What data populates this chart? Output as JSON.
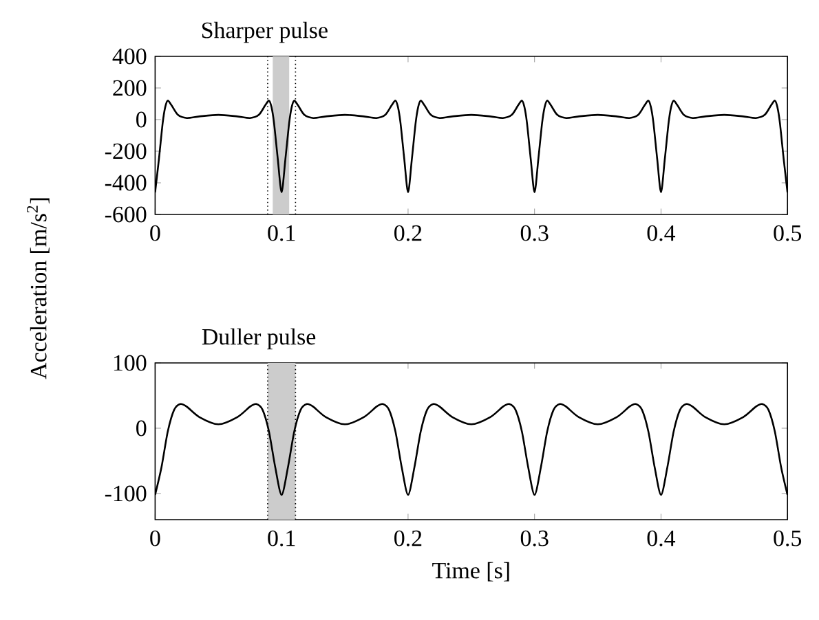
{
  "chart_data": [
    {
      "type": "line",
      "title": "Sharper pulse",
      "ylabel": "Acceleration [m/s$^{2}$]",
      "color": "#000000",
      "x": [
        0,
        0.003,
        0.006,
        0.008,
        0.01,
        0.013,
        0.018,
        0.025,
        0.035,
        0.05,
        0.065,
        0.075,
        0.082,
        0.087,
        0.09,
        0.092,
        0.094,
        0.097,
        0.1,
        0.103,
        0.106,
        0.108,
        0.11,
        0.113,
        0.118,
        0.125,
        0.135,
        0.15,
        0.165,
        0.175,
        0.182,
        0.187,
        0.19,
        0.192,
        0.194,
        0.197,
        0.2,
        0.203,
        0.206,
        0.208,
        0.21,
        0.213,
        0.218,
        0.225,
        0.235,
        0.25,
        0.265,
        0.275,
        0.282,
        0.287,
        0.29,
        0.292,
        0.294,
        0.297,
        0.3,
        0.303,
        0.306,
        0.308,
        0.31,
        0.313,
        0.318,
        0.325,
        0.335,
        0.35,
        0.365,
        0.375,
        0.382,
        0.387,
        0.39,
        0.392,
        0.394,
        0.397,
        0.4,
        0.403,
        0.406,
        0.408,
        0.41,
        0.413,
        0.418,
        0.425,
        0.435,
        0.45,
        0.465,
        0.475,
        0.482,
        0.487,
        0.49,
        0.492,
        0.494,
        0.497,
        0.5
      ],
      "values": [
        -460,
        -250,
        -20,
        80,
        120,
        90,
        30,
        10,
        20,
        30,
        20,
        10,
        30,
        90,
        120,
        80,
        -20,
        -250,
        -460,
        -250,
        -20,
        80,
        120,
        90,
        30,
        10,
        20,
        30,
        20,
        10,
        30,
        90,
        120,
        80,
        -20,
        -250,
        -460,
        -250,
        -20,
        80,
        120,
        90,
        30,
        10,
        20,
        30,
        20,
        10,
        30,
        90,
        120,
        80,
        -20,
        -250,
        -460,
        -250,
        -20,
        80,
        120,
        90,
        30,
        10,
        20,
        30,
        20,
        10,
        30,
        90,
        120,
        80,
        -20,
        -250,
        -460,
        -250,
        -20,
        80,
        120,
        90,
        30,
        10,
        20,
        30,
        20,
        10,
        30,
        90,
        120,
        80,
        -20,
        -250,
        -460
      ],
      "xlim": [
        0,
        0.5
      ],
      "ylim": [
        -600,
        400
      ],
      "xticks": [
        0,
        0.1,
        0.2,
        0.3,
        0.4,
        0.5
      ],
      "yticks": [
        -600,
        -400,
        -200,
        0,
        200,
        400
      ],
      "bands": [
        {
          "axis": "x",
          "from": 0.093,
          "to": 0.106,
          "color": "#cccccc"
        }
      ],
      "ref_lines": [
        {
          "axis": "x",
          "value": 0.089,
          "line_style": "dotted"
        },
        {
          "axis": "x",
          "value": 0.111,
          "line_style": "dotted"
        }
      ]
    },
    {
      "type": "line",
      "title": "Duller pulse",
      "xlabel": "Time [s]",
      "color": "#000000",
      "x": [
        0,
        0.005,
        0.01,
        0.015,
        0.02,
        0.025,
        0.035,
        0.05,
        0.065,
        0.075,
        0.08,
        0.085,
        0.09,
        0.095,
        0.1,
        0.105,
        0.11,
        0.115,
        0.12,
        0.125,
        0.135,
        0.15,
        0.165,
        0.175,
        0.18,
        0.185,
        0.19,
        0.195,
        0.2,
        0.205,
        0.21,
        0.215,
        0.22,
        0.225,
        0.235,
        0.25,
        0.265,
        0.275,
        0.28,
        0.285,
        0.29,
        0.295,
        0.3,
        0.305,
        0.31,
        0.315,
        0.32,
        0.325,
        0.335,
        0.35,
        0.365,
        0.375,
        0.38,
        0.385,
        0.39,
        0.395,
        0.4,
        0.405,
        0.41,
        0.415,
        0.42,
        0.425,
        0.435,
        0.45,
        0.465,
        0.475,
        0.48,
        0.485,
        0.49,
        0.495,
        0.5
      ],
      "values": [
        -102,
        -60,
        -5,
        28,
        37,
        33,
        17,
        6,
        17,
        33,
        37,
        28,
        -5,
        -60,
        -102,
        -60,
        -5,
        28,
        37,
        33,
        17,
        6,
        17,
        33,
        37,
        28,
        -5,
        -60,
        -102,
        -60,
        -5,
        28,
        37,
        33,
        17,
        6,
        17,
        33,
        37,
        28,
        -5,
        -60,
        -102,
        -60,
        -5,
        28,
        37,
        33,
        17,
        6,
        17,
        33,
        37,
        28,
        -5,
        -60,
        -102,
        -60,
        -5,
        28,
        37,
        33,
        17,
        6,
        17,
        33,
        37,
        28,
        -5,
        -60,
        -102
      ],
      "xlim": [
        0,
        0.5
      ],
      "ylim": [
        -140,
        100
      ],
      "xticks": [
        0,
        0.1,
        0.2,
        0.3,
        0.4,
        0.5
      ],
      "yticks": [
        -100,
        0,
        100
      ],
      "bands": [
        {
          "axis": "x",
          "from": 0.089,
          "to": 0.111,
          "color": "#cccccc"
        }
      ],
      "ref_lines": [
        {
          "axis": "x",
          "value": 0.089,
          "line_style": "dotted"
        },
        {
          "axis": "x",
          "value": 0.111,
          "line_style": "dotted"
        }
      ]
    }
  ]
}
